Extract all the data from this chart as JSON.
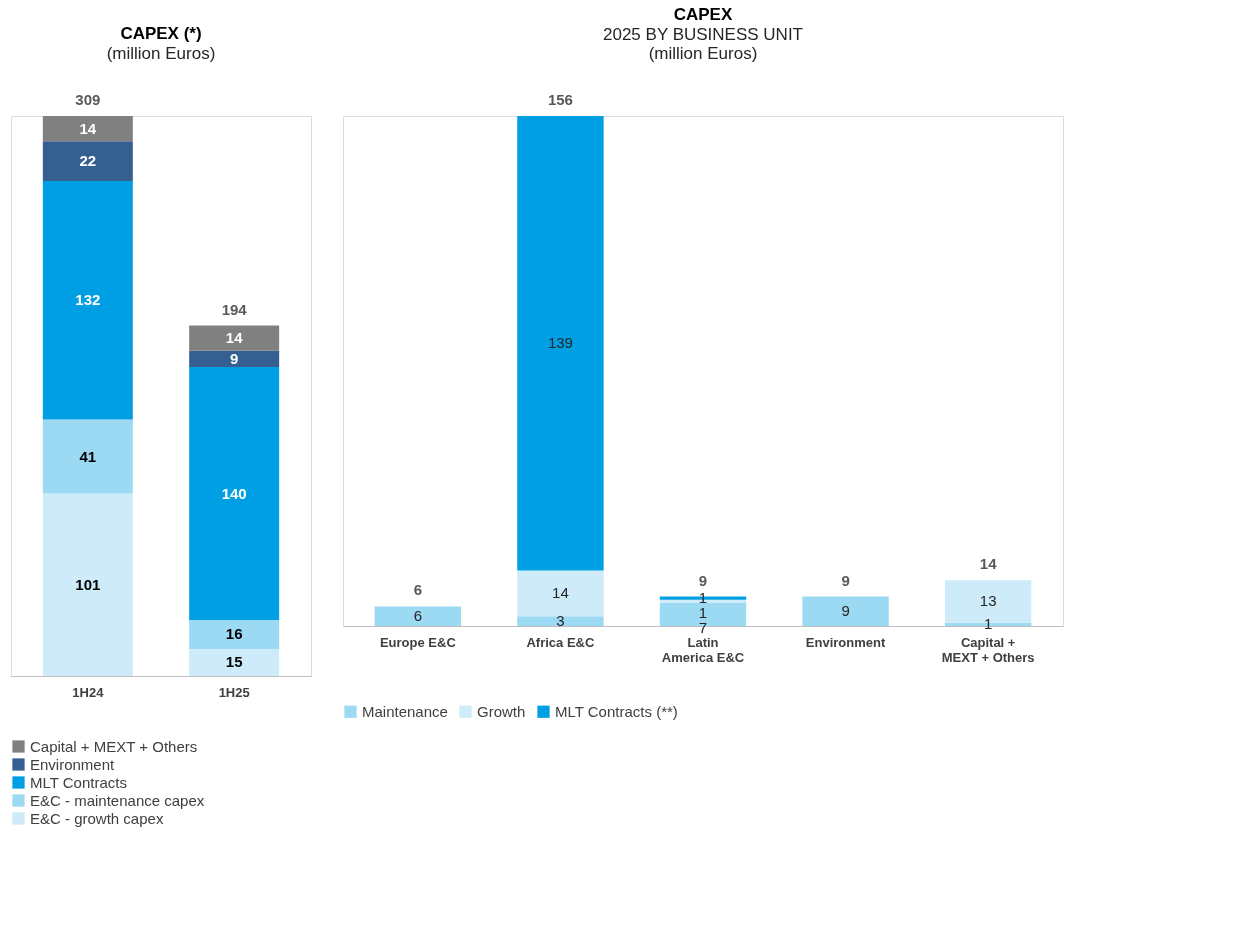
{
  "chart_data": [
    {
      "type": "bar",
      "title": "CAPEX (*)",
      "subtitle": "(million Euros)",
      "categories": [
        "1H24",
        "1H25"
      ],
      "stacked": true,
      "data_labels": true,
      "totals": [
        "309",
        "194"
      ],
      "legend": "bottom left",
      "grid": false,
      "series": [
        {
          "name": "E&C - growth capex",
          "color": "#cdebf8",
          "values": [
            101,
            15
          ]
        },
        {
          "name": "E&C - maintenance capex",
          "color": "#9cd9f3",
          "values": [
            41,
            16
          ]
        },
        {
          "name": "MLT Contracts",
          "color": "#009fe3",
          "values": [
            132,
            140
          ]
        },
        {
          "name": "Environment",
          "color": "#355f91",
          "values": [
            22,
            9
          ]
        },
        {
          "name": "Capital + MEXT + Others",
          "color": "#808080",
          "values": [
            14,
            14
          ]
        }
      ]
    },
    {
      "type": "bar",
      "title": "CAPEX",
      "subtitle": "2025 BY BUSINESS UNIT\n(million Euros)",
      "categories": [
        "Europe E&C",
        "Africa E&C",
        "Latin America E&C",
        "Environment",
        "Capital + MEXT + Others"
      ],
      "stacked": true,
      "data_labels": true,
      "totals": [
        "6",
        "156",
        "9",
        "9",
        "14"
      ],
      "legend": "bottom",
      "grid": false,
      "series": [
        {
          "name": "Maintenance",
          "color": "#9cd9f3",
          "values": [
            6,
            3,
            7,
            9,
            1
          ]
        },
        {
          "name": "Growth",
          "color": "#cdebf8",
          "values": [
            null,
            14,
            1,
            null,
            13
          ]
        },
        {
          "name": "MLT Contracts (**)",
          "color": "#009fe3",
          "values": [
            null,
            139,
            1,
            null,
            null
          ]
        }
      ]
    }
  ]
}
